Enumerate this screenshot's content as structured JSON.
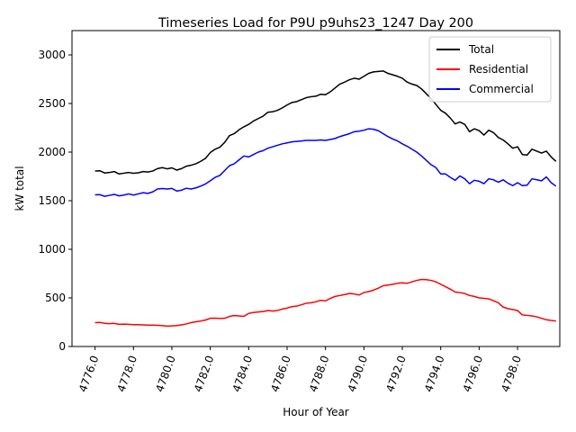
{
  "chart_data": {
    "type": "line",
    "title": "Timeseries Load for P9U p9uhs23_1247  Day 200",
    "xlabel": "Hour of Year",
    "ylabel": "kW total",
    "xlim": [
      4774.8,
      4800.2
    ],
    "ylim": [
      0,
      3250
    ],
    "x_ticks": [
      4776,
      4778,
      4780,
      4782,
      4784,
      4786,
      4788,
      4790,
      4792,
      4794,
      4796,
      4798
    ],
    "x_tick_labels": [
      "4776.0",
      "4778.0",
      "4780.0",
      "4782.0",
      "4784.0",
      "4786.0",
      "4788.0",
      "4790.0",
      "4792.0",
      "4794.0",
      "4796.0",
      "4798.0"
    ],
    "y_ticks": [
      0,
      500,
      1000,
      1500,
      2000,
      2500,
      3000
    ],
    "y_tick_labels": [
      "0",
      "500",
      "1000",
      "1500",
      "2000",
      "2500",
      "3000"
    ],
    "legend_position": "top-right",
    "x_start": 4776.0,
    "x_step": 0.25,
    "series": [
      {
        "name": "Total",
        "color": "#000000",
        "values": [
          1805,
          1808,
          1785,
          1790,
          1800,
          1775,
          1783,
          1790,
          1782,
          1787,
          1800,
          1795,
          1805,
          1830,
          1840,
          1828,
          1838,
          1815,
          1830,
          1855,
          1865,
          1880,
          1905,
          1935,
          1995,
          2030,
          2050,
          2100,
          2170,
          2190,
          2230,
          2260,
          2285,
          2320,
          2345,
          2370,
          2410,
          2415,
          2430,
          2455,
          2485,
          2510,
          2520,
          2540,
          2560,
          2570,
          2575,
          2595,
          2590,
          2620,
          2660,
          2700,
          2720,
          2745,
          2760,
          2750,
          2780,
          2810,
          2825,
          2830,
          2835,
          2810,
          2795,
          2780,
          2760,
          2720,
          2700,
          2685,
          2650,
          2600,
          2550,
          2490,
          2430,
          2400,
          2350,
          2290,
          2310,
          2285,
          2210,
          2240,
          2220,
          2175,
          2225,
          2200,
          2150,
          2125,
          2085,
          2040,
          2055,
          1975,
          1970,
          2030,
          2010,
          1990,
          2010,
          1950,
          1905
        ]
      },
      {
        "name": "Residential",
        "color": "#ff0000",
        "values": [
          245,
          248,
          238,
          235,
          238,
          228,
          230,
          228,
          225,
          225,
          222,
          220,
          220,
          218,
          215,
          210,
          212,
          215,
          222,
          232,
          245,
          255,
          262,
          272,
          290,
          292,
          288,
          290,
          310,
          318,
          315,
          310,
          340,
          350,
          355,
          360,
          370,
          365,
          370,
          385,
          395,
          410,
          415,
          430,
          445,
          450,
          460,
          475,
          470,
          495,
          515,
          525,
          535,
          545,
          540,
          530,
          555,
          565,
          580,
          600,
          625,
          632,
          640,
          650,
          655,
          650,
          665,
          680,
          690,
          688,
          680,
          665,
          640,
          615,
          590,
          560,
          555,
          545,
          525,
          515,
          500,
          495,
          490,
          470,
          450,
          405,
          390,
          380,
          370,
          325,
          320,
          315,
          305,
          290,
          275,
          268,
          262
        ]
      },
      {
        "name": "Commercial",
        "color": "#0000ff",
        "values": [
          1560,
          1562,
          1545,
          1555,
          1565,
          1550,
          1558,
          1570,
          1558,
          1570,
          1582,
          1575,
          1590,
          1620,
          1625,
          1620,
          1626,
          1600,
          1608,
          1628,
          1620,
          1632,
          1650,
          1672,
          1705,
          1740,
          1760,
          1810,
          1860,
          1880,
          1920,
          1960,
          1950,
          1975,
          2000,
          2015,
          2040,
          2055,
          2070,
          2085,
          2095,
          2105,
          2110,
          2115,
          2120,
          2120,
          2120,
          2125,
          2120,
          2130,
          2140,
          2160,
          2175,
          2190,
          2210,
          2215,
          2225,
          2240,
          2235,
          2220,
          2190,
          2160,
          2135,
          2115,
          2085,
          2060,
          2030,
          2000,
          1960,
          1915,
          1870,
          1840,
          1775,
          1775,
          1740,
          1710,
          1755,
          1725,
          1675,
          1710,
          1700,
          1675,
          1725,
          1715,
          1690,
          1715,
          1680,
          1655,
          1685,
          1655,
          1660,
          1725,
          1715,
          1705,
          1745,
          1685,
          1650
        ]
      }
    ]
  }
}
